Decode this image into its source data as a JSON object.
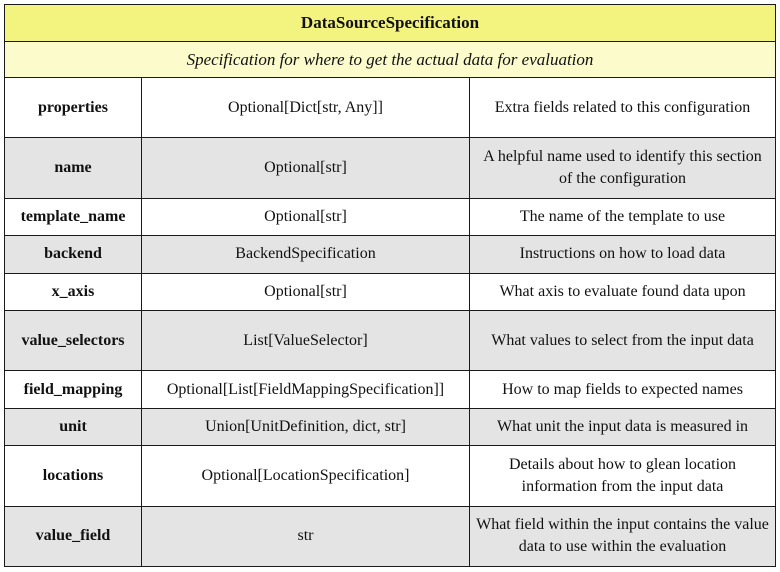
{
  "table": {
    "title": "DataSourceSpecification",
    "description": "Specification for where to get the actual data for evaluation",
    "rows": [
      {
        "field": "properties",
        "type": "Optional[Dict[str, Any]]",
        "description": "Extra fields related to this configuration"
      },
      {
        "field": "name",
        "type": "Optional[str]",
        "description": "A helpful name used to identify this section of the configuration"
      },
      {
        "field": "template_name",
        "type": "Optional[str]",
        "description": "The name of the template to use"
      },
      {
        "field": "backend",
        "type": "BackendSpecification",
        "description": "Instructions on how to load data"
      },
      {
        "field": "x_axis",
        "type": "Optional[str]",
        "description": "What axis to evaluate found data upon"
      },
      {
        "field": "value_selectors",
        "type": "List[ValueSelector]",
        "description": "What values to select from the input data"
      },
      {
        "field": "field_mapping",
        "type": "Optional[List[FieldMappingSpecification]]",
        "description": "How to map fields to expected names"
      },
      {
        "field": "unit",
        "type": "Union[UnitDefinition, dict, str]",
        "description": "What unit the input data is measured in"
      },
      {
        "field": "locations",
        "type": "Optional[LocationSpecification]",
        "description": "Details about how to glean location information from the input data"
      },
      {
        "field": "value_field",
        "type": "str",
        "description": "What field within the input contains the value data to use within the evaluation"
      }
    ]
  },
  "colors": {
    "title_background": "#f3f380",
    "description_background": "#fbfbcc",
    "alternate_row_background": "#e4e4e4",
    "border": "#1a1a1a"
  }
}
